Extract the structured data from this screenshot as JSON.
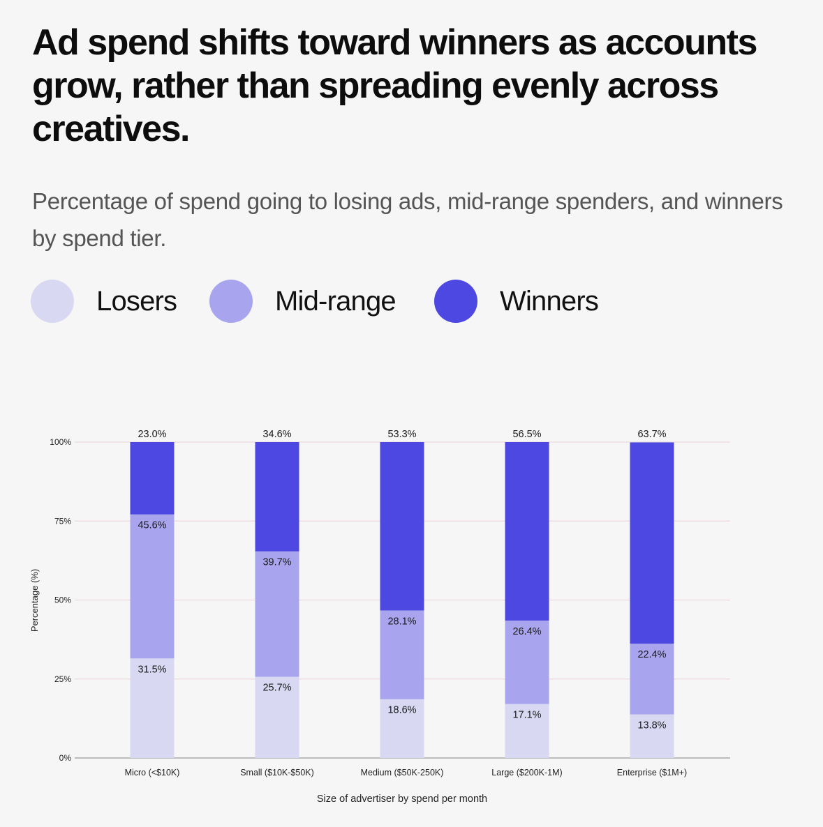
{
  "chart_data": {
    "type": "bar",
    "stacked": true,
    "title": "Ad spend shifts toward winners as accounts grow, rather than spreading evenly across creatives.",
    "subtitle": "Percentage of spend going to losing ads, mid-range spenders, and winners by spend tier.",
    "xlabel": "Size of advertiser by spend per month",
    "ylabel": "Percentage (%)",
    "ylim": [
      0,
      100
    ],
    "yticks": [
      "0%",
      "25%",
      "50%",
      "75%",
      "100%"
    ],
    "grid": true,
    "legend_position": "top-left",
    "categories": [
      "Micro (<$10K)",
      "Small ($10K-$50K)",
      "Medium ($50K-250K)",
      "Large ($200K-1M)",
      "Enterprise ($1M+)"
    ],
    "series": [
      {
        "name": "Losers",
        "color": "#d8d8f3",
        "values": [
          31.5,
          25.7,
          18.6,
          17.1,
          13.8
        ],
        "labels": [
          "31.5%",
          "25.7%",
          "18.6%",
          "17.1%",
          "13.8%"
        ]
      },
      {
        "name": "Mid-range",
        "color": "#a8a4ee",
        "values": [
          45.6,
          39.7,
          28.1,
          26.4,
          22.4
        ],
        "labels": [
          "45.6%",
          "39.7%",
          "28.1%",
          "26.4%",
          "22.4%"
        ]
      },
      {
        "name": "Winners",
        "color": "#4d48e2",
        "values": [
          23.0,
          34.6,
          53.3,
          56.5,
          63.7
        ],
        "labels": [
          "23.0%",
          "34.6%",
          "53.3%",
          "56.5%",
          "63.7%"
        ]
      }
    ]
  }
}
